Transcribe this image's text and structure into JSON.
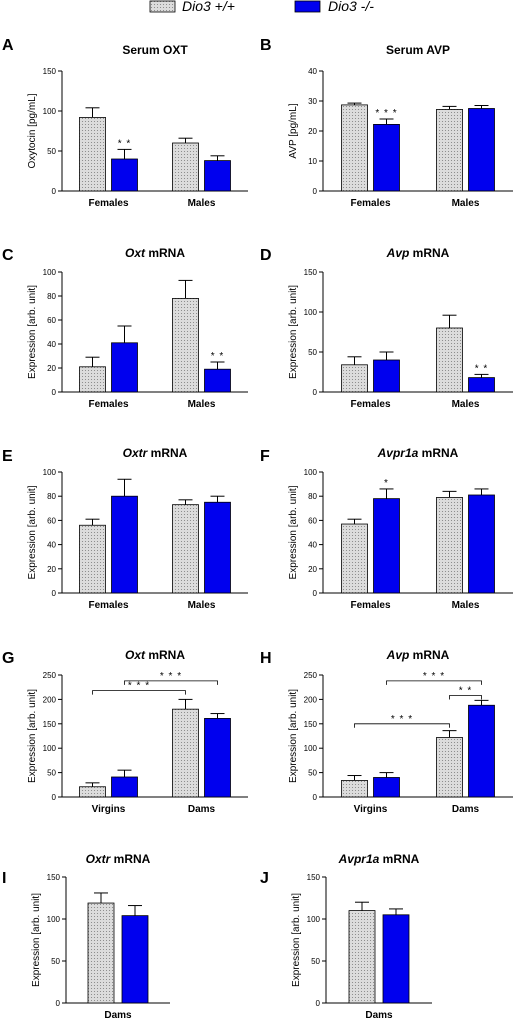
{
  "legend": [
    {
      "label": "Dio3 +/+",
      "style": "dotted"
    },
    {
      "label": "Dio3 -/-",
      "style": "solid"
    }
  ],
  "colors": {
    "wt_fill": "#d9d9d9",
    "ko_fill": "#0000ee",
    "axis": "#000000"
  },
  "chart_data": [
    {
      "panel": "A",
      "type": "bar",
      "title": "Serum OXT",
      "title_italic": "",
      "title_rest": "",
      "ylabel": "Oxytocin [pg/mL]",
      "ylim": [
        0,
        150
      ],
      "yticks": [
        0,
        50,
        100,
        150
      ],
      "categories": [
        "Females",
        "Males"
      ],
      "series": [
        {
          "name": "Dio3 +/+",
          "values": [
            92,
            60
          ],
          "errors": [
            12,
            6
          ]
        },
        {
          "name": "Dio3 -/-",
          "values": [
            40,
            38
          ],
          "errors": [
            12,
            6
          ]
        }
      ],
      "annotations": [
        {
          "category": 0,
          "series": 1,
          "text": "* *"
        }
      ],
      "brackets": []
    },
    {
      "panel": "B",
      "type": "bar",
      "title": "Serum AVP",
      "title_italic": "",
      "title_rest": "",
      "ylabel": "AVP [pg/mL]",
      "ylim": [
        0,
        40
      ],
      "yticks": [
        0,
        10,
        20,
        30,
        40
      ],
      "categories": [
        "Females",
        "Males"
      ],
      "series": [
        {
          "name": "Dio3 +/+",
          "values": [
            28.7,
            27.2
          ],
          "errors": [
            0.6,
            1.0
          ]
        },
        {
          "name": "Dio3 -/-",
          "values": [
            22.2,
            27.5
          ],
          "errors": [
            1.8,
            1.0
          ]
        }
      ],
      "annotations": [
        {
          "category": 0,
          "series": 1,
          "text": "* * *"
        }
      ],
      "brackets": []
    },
    {
      "panel": "C",
      "type": "bar",
      "title": "",
      "title_italic": "Oxt",
      "title_rest": " mRNA",
      "ylabel": "Expression [arb. unit]",
      "ylim": [
        0,
        100
      ],
      "yticks": [
        0,
        20,
        40,
        60,
        80,
        100
      ],
      "categories": [
        "Females",
        "Males"
      ],
      "series": [
        {
          "name": "Dio3 +/+",
          "values": [
            21,
            78
          ],
          "errors": [
            8,
            15
          ]
        },
        {
          "name": "Dio3 -/-",
          "values": [
            41,
            19
          ],
          "errors": [
            14,
            6
          ]
        }
      ],
      "annotations": [
        {
          "category": 1,
          "series": 1,
          "text": "* *"
        }
      ],
      "brackets": []
    },
    {
      "panel": "D",
      "type": "bar",
      "title": "",
      "title_italic": "Avp",
      "title_rest": " mRNA",
      "ylabel": "Expression [arb. unit]",
      "ylim": [
        0,
        150
      ],
      "yticks": [
        0,
        50,
        100,
        150
      ],
      "categories": [
        "Females",
        "Males"
      ],
      "series": [
        {
          "name": "Dio3 +/+",
          "values": [
            34,
            80
          ],
          "errors": [
            10,
            16
          ]
        },
        {
          "name": "Dio3 -/-",
          "values": [
            40,
            18
          ],
          "errors": [
            10,
            4
          ]
        }
      ],
      "annotations": [
        {
          "category": 1,
          "series": 1,
          "text": "* *"
        }
      ],
      "brackets": []
    },
    {
      "panel": "E",
      "type": "bar",
      "title": "",
      "title_italic": "Oxtr",
      "title_rest": " mRNA",
      "ylabel": "Expression [arb. unit]",
      "ylim": [
        0,
        100
      ],
      "yticks": [
        0,
        20,
        40,
        60,
        80,
        100
      ],
      "categories": [
        "Females",
        "Males"
      ],
      "series": [
        {
          "name": "Dio3 +/+",
          "values": [
            56,
            73
          ],
          "errors": [
            5,
            4
          ]
        },
        {
          "name": "Dio3 -/-",
          "values": [
            80,
            75
          ],
          "errors": [
            14,
            5
          ]
        }
      ],
      "annotations": [],
      "brackets": []
    },
    {
      "panel": "F",
      "type": "bar",
      "title": "",
      "title_italic": "Avpr1a",
      "title_rest": " mRNA",
      "ylabel": "Expression [arb. unit]",
      "ylim": [
        0,
        100
      ],
      "yticks": [
        0,
        20,
        40,
        60,
        80,
        100
      ],
      "categories": [
        "Females",
        "Males"
      ],
      "series": [
        {
          "name": "Dio3 +/+",
          "values": [
            57,
            79
          ],
          "errors": [
            4,
            5
          ]
        },
        {
          "name": "Dio3 -/-",
          "values": [
            78,
            81
          ],
          "errors": [
            8,
            5
          ]
        }
      ],
      "annotations": [
        {
          "category": 0,
          "series": 1,
          "text": "*"
        }
      ],
      "brackets": []
    },
    {
      "panel": "G",
      "type": "bar",
      "title": "",
      "title_italic": "Oxt",
      "title_rest": " mRNA",
      "ylabel": "Expression [arb. unit]",
      "ylim": [
        0,
        250
      ],
      "yticks": [
        0,
        50,
        100,
        150,
        200,
        250
      ],
      "categories": [
        "Virgins",
        "Dams"
      ],
      "series": [
        {
          "name": "Dio3 +/+",
          "values": [
            21,
            180
          ],
          "errors": [
            8,
            20
          ]
        },
        {
          "name": "Dio3 -/-",
          "values": [
            41,
            161
          ],
          "errors": [
            14,
            10
          ]
        }
      ],
      "annotations": [],
      "brackets": [
        {
          "from": [
            0,
            0
          ],
          "to": [
            1,
            0
          ],
          "y": 218,
          "text": "* * *"
        },
        {
          "from": [
            0,
            1
          ],
          "to": [
            1,
            1
          ],
          "y": 238,
          "text": "* * *"
        }
      ]
    },
    {
      "panel": "H",
      "type": "bar",
      "title": "",
      "title_italic": "Avp",
      "title_rest": " mRNA",
      "ylabel": "Expression [arb. unit]",
      "ylim": [
        0,
        250
      ],
      "yticks": [
        0,
        50,
        100,
        150,
        200,
        250
      ],
      "categories": [
        "Virgins",
        "Dams"
      ],
      "series": [
        {
          "name": "Dio3 +/+",
          "values": [
            34,
            122
          ],
          "errors": [
            10,
            14
          ]
        },
        {
          "name": "Dio3 -/-",
          "values": [
            40,
            188
          ],
          "errors": [
            10,
            10
          ]
        }
      ],
      "annotations": [],
      "brackets": [
        {
          "from": [
            0,
            0
          ],
          "to": [
            1,
            0
          ],
          "y": 150,
          "text": "* * *"
        },
        {
          "from": [
            1,
            0
          ],
          "to": [
            1,
            1
          ],
          "y": 208,
          "text": "* *"
        },
        {
          "from": [
            0,
            1
          ],
          "to": [
            1,
            1
          ],
          "y": 238,
          "text": "* * *"
        }
      ]
    },
    {
      "panel": "I",
      "type": "bar",
      "title": "",
      "title_italic": "Oxtr",
      "title_rest": " mRNA",
      "ylabel": "Expression [arb. unit]",
      "ylim": [
        0,
        150
      ],
      "yticks": [
        0,
        50,
        100,
        150
      ],
      "categories": [
        "Dams"
      ],
      "series": [
        {
          "name": "Dio3 +/+",
          "values": [
            119
          ],
          "errors": [
            12
          ]
        },
        {
          "name": "Dio3 -/-",
          "values": [
            104
          ],
          "errors": [
            12
          ]
        }
      ],
      "annotations": [],
      "brackets": []
    },
    {
      "panel": "J",
      "type": "bar",
      "title": "",
      "title_italic": "Avpr1a",
      "title_rest": " mRNA",
      "ylabel": "Expression [arb. unit]",
      "ylim": [
        0,
        150
      ],
      "yticks": [
        0,
        50,
        100,
        150
      ],
      "categories": [
        "Dams"
      ],
      "series": [
        {
          "name": "Dio3 +/+",
          "values": [
            110
          ],
          "errors": [
            10
          ]
        },
        {
          "name": "Dio3 -/-",
          "values": [
            105
          ],
          "errors": [
            7
          ]
        }
      ],
      "annotations": [],
      "brackets": []
    }
  ]
}
